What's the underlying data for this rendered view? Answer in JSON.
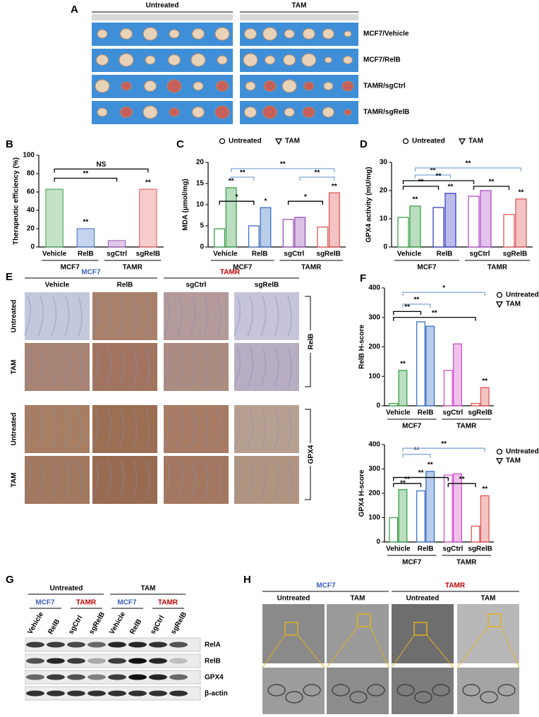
{
  "panel_a": {
    "label": "A",
    "columns": [
      "Untreated",
      "TAM"
    ],
    "rows": [
      "MCF7/Vehicle",
      "MCF7/RelB",
      "TAMR/sgCtrl",
      "TAMR/sgRelB"
    ]
  },
  "chart_data": [
    {
      "panel_label": "B",
      "type": "bar",
      "y_label": "Therapeutic efficiency (%)",
      "categories": [
        "Vehicle",
        "RelB",
        "sgCtrl",
        "sgRelB"
      ],
      "values": [
        63,
        20,
        7,
        63
      ],
      "colors": [
        "#3aa048",
        "#3a6fc4",
        "#9b4fb6",
        "#e05555"
      ],
      "significance": [
        null,
        "**",
        null,
        "**"
      ],
      "brackets": [
        {
          "text": "NS",
          "color": "#000000"
        },
        {
          "text": "**",
          "color": "#000000"
        }
      ],
      "group_labels": [
        {
          "text": "MCF7",
          "color": "#3a5fbf"
        },
        {
          "text": "TAMR",
          "color": "#c00000"
        }
      ],
      "ylim": [
        0,
        100
      ],
      "yticks": [
        0,
        20,
        40,
        60,
        80,
        100
      ]
    },
    {
      "panel_label": "C",
      "type": "grouped_bar",
      "y_label": "MDA (μmol/mg)",
      "categories": [
        "Vehicle",
        "RelB",
        "sgCtrl",
        "sgRelB"
      ],
      "colors": [
        "#3aa048",
        "#3a6fc4",
        "#9b4fb6",
        "#e05555"
      ],
      "series": [
        {
          "name": "Untreated",
          "marker": "circle",
          "values": [
            4.3,
            5.0,
            6.5,
            4.7
          ]
        },
        {
          "name": "TAM",
          "marker": "triangle",
          "values": [
            14.0,
            9.3,
            7.0,
            12.8
          ],
          "significance": [
            "**",
            "*",
            null,
            "**"
          ]
        }
      ],
      "brackets": [
        {
          "text": "**",
          "color": "#7fa7d9"
        },
        {
          "text": "**",
          "color": "#7fa7d9"
        },
        {
          "text": "**",
          "color": "#7fa7d9"
        },
        {
          "text": "*",
          "color": "#000000"
        },
        {
          "text": "*",
          "color": "#000000"
        }
      ],
      "group_labels": [
        {
          "text": "MCF7",
          "color": "#3a5fbf"
        },
        {
          "text": "TAMR",
          "color": "#c00000"
        }
      ],
      "legend": "top",
      "ylim": [
        0,
        20
      ],
      "yticks": [
        0,
        5,
        10,
        15,
        20
      ]
    },
    {
      "panel_label": "D",
      "type": "grouped_bar",
      "y_label": "GPX4 activity (mU/mg)",
      "categories": [
        "Vehicle",
        "RelB",
        "sgCtrl",
        "sgRelB"
      ],
      "colors": [
        "#3aa048",
        "#3a3fc4",
        "#b04fc6",
        "#e05555"
      ],
      "series": [
        {
          "name": "Untreated",
          "marker": "circle",
          "values": [
            10.5,
            14.0,
            18.0,
            11.5
          ]
        },
        {
          "name": "TAM",
          "marker": "triangle",
          "values": [
            14.5,
            19.0,
            20.0,
            17.0
          ],
          "significance": [
            "**",
            "**",
            null,
            "**"
          ]
        }
      ],
      "brackets": [
        {
          "text": "**",
          "color": "#7fa7d9"
        },
        {
          "text": "**",
          "color": "#7fa7d9"
        },
        {
          "text": "**",
          "color": "#000000"
        },
        {
          "text": "**",
          "color": "#000000"
        },
        {
          "text": "**",
          "color": "#000000"
        }
      ],
      "group_labels": [
        {
          "text": "MCF7",
          "color": "#3a5fbf"
        },
        {
          "text": "TAMR",
          "color": "#c00000"
        }
      ],
      "legend": "top",
      "ylim": [
        0,
        30
      ],
      "yticks": [
        0,
        10,
        20,
        30
      ]
    },
    {
      "panel_label": "F",
      "type": "grouped_bar",
      "y_label": "RelB H-score",
      "categories": [
        "Vehicle",
        "RelB",
        "sgCtrl",
        "sgRelB"
      ],
      "colors": [
        "#3aa048",
        "#3a6fc4",
        "#d050c8",
        "#e05555"
      ],
      "series": [
        {
          "name": "Untreated",
          "marker": "circle",
          "values": [
            8,
            285,
            120,
            8
          ]
        },
        {
          "name": "TAM",
          "marker": "triangle",
          "values": [
            120,
            270,
            210,
            62
          ],
          "significance": [
            "**",
            null,
            null,
            "**"
          ]
        }
      ],
      "brackets": [
        {
          "text": "**",
          "color": "#7fa7d9"
        },
        {
          "text": "*",
          "color": "#7fa7d9"
        },
        {
          "text": "**",
          "color": "#000000"
        },
        {
          "text": "**",
          "color": "#000000"
        }
      ],
      "group_labels": [
        {
          "text": "MCF7",
          "color": "#3a5fbf"
        },
        {
          "text": "TAMR",
          "color": "#c00000"
        }
      ],
      "legend": "right",
      "ylim": [
        0,
        400
      ],
      "yticks": [
        0,
        100,
        200,
        300,
        400
      ]
    },
    {
      "type": "grouped_bar",
      "y_label": "GPX4 H-score",
      "categories": [
        "Vehicle",
        "RelB",
        "sgCtrl",
        "sgRelB"
      ],
      "colors": [
        "#3aa048",
        "#3a6fc4",
        "#d050c8",
        "#e05555"
      ],
      "series": [
        {
          "name": "Untreated",
          "marker": "circle",
          "values": [
            100,
            210,
            275,
            65
          ]
        },
        {
          "name": "TAM",
          "marker": "triangle",
          "values": [
            215,
            290,
            280,
            190
          ],
          "significance": [
            "**",
            "**",
            null,
            "**"
          ]
        }
      ],
      "brackets": [
        {
          "text": "**",
          "color": "#7fa7d9"
        },
        {
          "text": "**",
          "color": "#7fa7d9"
        },
        {
          "text": "**",
          "color": "#000000"
        },
        {
          "text": "**",
          "color": "#000000"
        },
        {
          "text": "**",
          "color": "#000000"
        }
      ],
      "group_labels": [
        {
          "text": "MCF7",
          "color": "#3a5fbf"
        },
        {
          "text": "TAMR",
          "color": "#c00000"
        }
      ],
      "legend": "right",
      "ylim": [
        0,
        400
      ],
      "yticks": [
        0,
        100,
        200,
        300,
        400
      ]
    }
  ],
  "panel_e": {
    "label": "E",
    "groups": [
      "MCF7",
      "TAMR"
    ],
    "columns": [
      "Vehicle",
      "RelB",
      "sgCtrl",
      "sgRelB"
    ],
    "rows": [
      "Untreated",
      "TAM",
      "Untreated",
      "TAM"
    ],
    "markers": [
      "RelB",
      "GPX4"
    ]
  },
  "panel_g": {
    "label": "G",
    "treatments": [
      "Untreated",
      "TAM"
    ],
    "lines": [
      "MCF7",
      "TAMR",
      "MCF7",
      "TAMR"
    ],
    "lanes": [
      "Vehicle",
      "RelB",
      "sgCtrl",
      "sgRelB",
      "Vehicle",
      "RelB",
      "sgCtrl",
      "sgRelB"
    ],
    "proteins": [
      "RelA",
      "RelB",
      "GPX4",
      "β-actin"
    ]
  },
  "panel_h": {
    "label": "H",
    "groups": [
      "MCF7",
      "TAMR"
    ],
    "columns": [
      "Untreated",
      "TAM",
      "Untreated",
      "TAM"
    ]
  }
}
